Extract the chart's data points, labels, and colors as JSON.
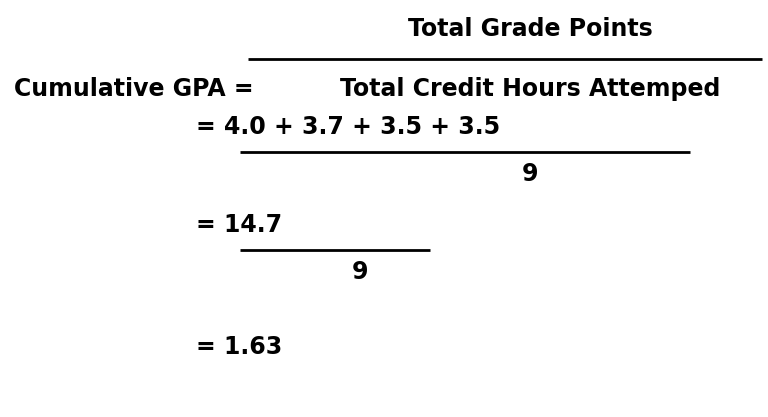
{
  "background_color": "#ffffff",
  "fig_width": 7.68,
  "fig_height": 4.17,
  "dpi": 100,
  "label_cumgpa": "Cumulative GPA = ",
  "label_numerator1": "Total Grade Points",
  "label_denominator1": "Total Credit Hours Attemped",
  "label_eq2_lhs": "= 4.0 + 3.7 + 3.5 + 3.5",
  "label_denominator2": "9",
  "label_eq3_lhs": "= 14.7",
  "label_denominator3": "9",
  "label_eq4": "= 1.63",
  "font_size_main": 17,
  "text_color": "#000000",
  "font_weight": "bold"
}
